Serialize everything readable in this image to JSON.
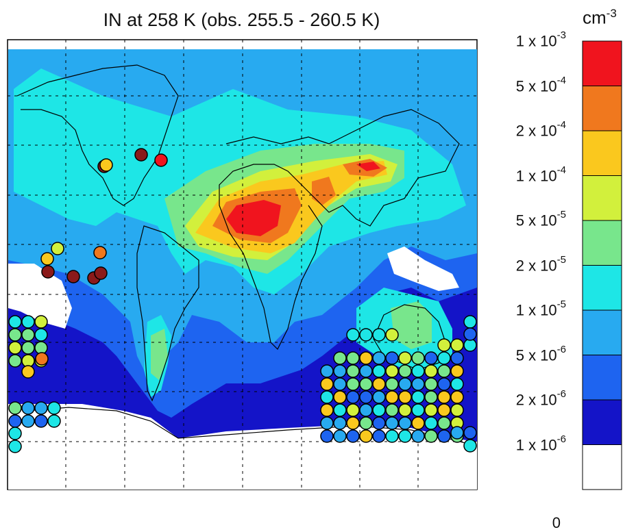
{
  "title": "IN at 258 K (obs. 255.5 - 260.5 K)",
  "colorbar": {
    "unit_base": "cm",
    "unit_exp": "-3",
    "ticks": [
      {
        "mant": "1 x 10",
        "exp": "-3"
      },
      {
        "mant": "5 x 10",
        "exp": "-4"
      },
      {
        "mant": "2 x 10",
        "exp": "-4"
      },
      {
        "mant": "1 x 10",
        "exp": "-4"
      },
      {
        "mant": "5 x 10",
        "exp": "-5"
      },
      {
        "mant": "2 x 10",
        "exp": "-5"
      },
      {
        "mant": "1 x 10",
        "exp": "-5"
      },
      {
        "mant": "5 x 10",
        "exp": "-6"
      },
      {
        "mant": "2 x 10",
        "exp": "-6"
      },
      {
        "mant": "1 x 10",
        "exp": "-6"
      },
      {
        "mant": "0",
        "exp": ""
      }
    ],
    "colors": [
      "#f0141e",
      "#f0781e",
      "#fac81e",
      "#d2f03c",
      "#78e68c",
      "#1ee6e6",
      "#28aaf0",
      "#1e64f0",
      "#1414c8",
      "#ffffff"
    ]
  },
  "map_colors": {
    "ocean_low": "#1414c8",
    "level1": "#1e64f0",
    "level2": "#28aaf0",
    "level3": "#1ee6e6",
    "level4": "#78e68c",
    "level5": "#d2f03c",
    "level6": "#fac81e",
    "level7": "#f0781e",
    "level8": "#f0141e",
    "no_data": "#ffffff"
  }
}
